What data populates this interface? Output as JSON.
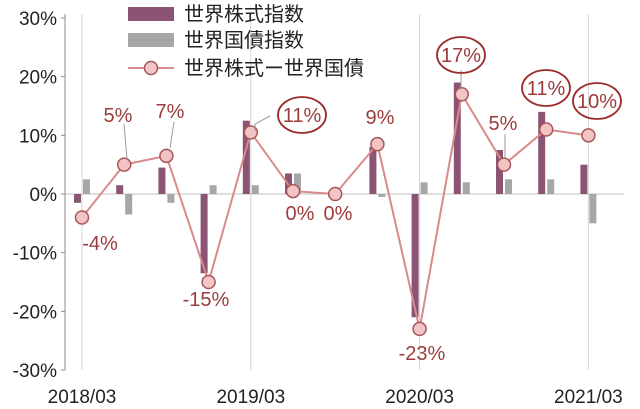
{
  "chart_data": {
    "type": "bar+line",
    "title": "",
    "xlabel": "",
    "ylabel": "",
    "ylim": [
      -30,
      30
    ],
    "yticks": [
      -30,
      -20,
      -10,
      0,
      10,
      20,
      30
    ],
    "ytick_labels": [
      "-30%",
      "-20%",
      "-10%",
      "0%",
      "10%",
      "20%",
      "30%"
    ],
    "x_tick_labels": [
      "2018/03",
      "2019/03",
      "2020/03",
      "2021/03"
    ],
    "x_tick_positions": [
      0,
      4,
      8,
      12
    ],
    "x": [
      "2018/03",
      "2018/06",
      "2018/09",
      "2018/12",
      "2019/03",
      "2019/06",
      "2019/09",
      "2019/12",
      "2020/03",
      "2020/06",
      "2020/09",
      "2020/12",
      "2021/03"
    ],
    "grid": "vertical",
    "legend": "top",
    "series": [
      {
        "name": "世界株式指数",
        "kind": "bar",
        "color": "#8b5474",
        "values": [
          -1.5,
          1.5,
          4.5,
          -13.5,
          12.5,
          3.5,
          0.0,
          8.0,
          -21.0,
          19.0,
          7.5,
          14.0,
          5.0
        ]
      },
      {
        "name": "世界国債指数",
        "kind": "bar",
        "color": "#a6a6a6",
        "values": [
          2.5,
          -3.5,
          -1.5,
          1.5,
          1.5,
          3.5,
          0.0,
          -0.5,
          2.0,
          2.0,
          2.5,
          2.5,
          -5.0
        ]
      },
      {
        "name": "世界株式ー世界国債",
        "kind": "line",
        "color": "#d98a8a",
        "values": [
          -4,
          5,
          6.5,
          -15,
          10.5,
          0.5,
          0,
          8.5,
          -23,
          17,
          5,
          11,
          10
        ]
      }
    ],
    "data_labels": [
      {
        "i": 0,
        "text": "-4%",
        "circled": false
      },
      {
        "i": 1,
        "text": "5%",
        "circled": false
      },
      {
        "i": 2,
        "text": "7%",
        "circled": false
      },
      {
        "i": 3,
        "text": "-15%",
        "circled": false
      },
      {
        "i": 4,
        "text": "11%",
        "circled": true
      },
      {
        "i": 5,
        "text": "0%",
        "circled": false
      },
      {
        "i": 6,
        "text": "0%",
        "circled": false
      },
      {
        "i": 7,
        "text": "9%",
        "circled": false
      },
      {
        "i": 8,
        "text": "-23%",
        "circled": false
      },
      {
        "i": 9,
        "text": "17%",
        "circled": true
      },
      {
        "i": 10,
        "text": "5%",
        "circled": false
      },
      {
        "i": 11,
        "text": "11%",
        "circled": true
      },
      {
        "i": 12,
        "text": "10%",
        "circled": true
      }
    ]
  }
}
